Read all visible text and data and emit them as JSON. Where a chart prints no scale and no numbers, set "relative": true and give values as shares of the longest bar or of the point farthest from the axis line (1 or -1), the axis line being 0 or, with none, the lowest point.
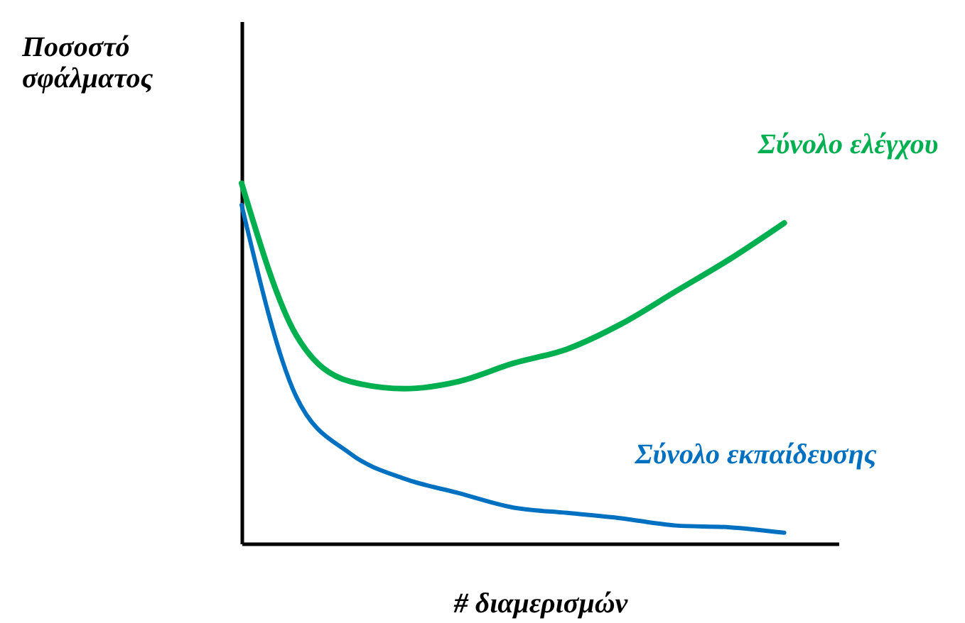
{
  "chart_data": {
    "type": "line",
    "relative": true,
    "xlabel": "# διαμερισμών",
    "ylabel": "Ποσοστό σφάλματος",
    "categories": [
      null,
      null,
      null,
      null,
      null,
      null,
      null,
      null,
      null,
      null,
      null
    ],
    "series": [
      {
        "name": "Σύνολο ελέγχου",
        "color": "#00b050",
        "values": [
          1.0,
          0.58,
          0.45,
          0.43,
          0.45,
          0.5,
          0.54,
          0.61,
          0.7,
          0.79,
          0.89
        ]
      },
      {
        "name": "Σύνολο εκπαίδευσης",
        "color": "#0070c0",
        "values": [
          0.94,
          0.41,
          0.25,
          0.18,
          0.14,
          0.1,
          0.085,
          0.07,
          0.05,
          0.045,
          0.03
        ]
      }
    ],
    "grid": false,
    "marker": "none",
    "line_style": "solid"
  }
}
